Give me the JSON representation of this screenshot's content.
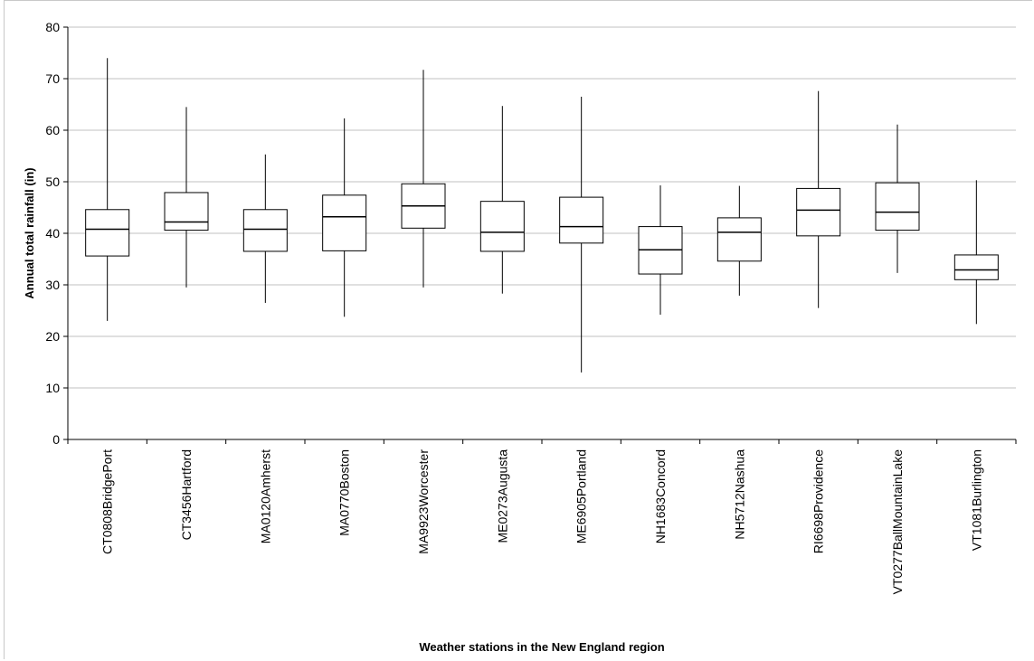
{
  "chart_data": {
    "type": "boxplot",
    "title": "",
    "xlabel": "Weather stations in the New England region",
    "ylabel": "Annual total rainfall (in)",
    "ylim": [
      0,
      80
    ],
    "yticks": [
      0,
      10,
      20,
      30,
      40,
      50,
      60,
      70,
      80
    ],
    "grid": true,
    "categories": [
      "CT0808BridgePort",
      "CT3456Hartford",
      "MA0120Amherst",
      "MA0770Boston",
      "MA9923Worcester",
      "ME0273Augusta",
      "ME6905Portland",
      "NH1683Concord",
      "NH5712Nashua",
      "RI6698Providence",
      "VT0277BallMountainLake",
      "VT1081Burlington"
    ],
    "series": [
      {
        "boxes": [
          {
            "min": 23.0,
            "q1": 35.6,
            "median": 40.8,
            "q3": 44.6,
            "max": 74.0
          },
          {
            "min": 29.5,
            "q1": 40.6,
            "median": 42.2,
            "q3": 47.9,
            "max": 64.5
          },
          {
            "min": 26.5,
            "q1": 36.5,
            "median": 40.8,
            "q3": 44.6,
            "max": 55.3
          },
          {
            "min": 23.8,
            "q1": 36.6,
            "median": 43.2,
            "q3": 47.4,
            "max": 62.3
          },
          {
            "min": 29.5,
            "q1": 41.0,
            "median": 45.3,
            "q3": 49.6,
            "max": 71.7
          },
          {
            "min": 28.3,
            "q1": 36.5,
            "median": 40.2,
            "q3": 46.2,
            "max": 64.7
          },
          {
            "min": 13.0,
            "q1": 38.1,
            "median": 41.3,
            "q3": 47.0,
            "max": 66.5
          },
          {
            "min": 24.2,
            "q1": 32.1,
            "median": 36.8,
            "q3": 41.3,
            "max": 49.3
          },
          {
            "min": 27.9,
            "q1": 34.6,
            "median": 40.2,
            "q3": 43.0,
            "max": 49.2
          },
          {
            "min": 25.5,
            "q1": 39.5,
            "median": 44.5,
            "q3": 48.7,
            "max": 67.6
          },
          {
            "min": 32.3,
            "q1": 40.6,
            "median": 44.1,
            "q3": 49.8,
            "max": 61.1
          },
          {
            "min": 22.4,
            "q1": 31.0,
            "median": 32.9,
            "q3": 35.8,
            "max": 50.3
          }
        ]
      }
    ]
  }
}
